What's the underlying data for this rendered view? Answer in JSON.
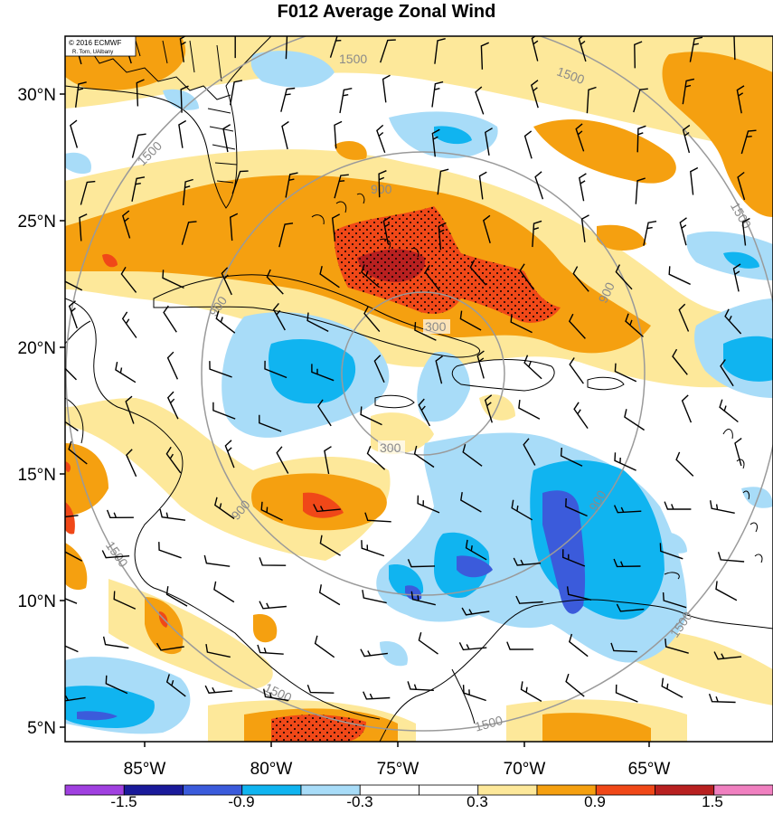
{
  "title": "F012 Average Zonal Wind",
  "credit": {
    "line1": "© 2016 ECMWF",
    "line2": "R. Torn, UAlbany"
  },
  "lat_labels": [
    "30°N",
    "25°N",
    "20°N",
    "15°N",
    "10°N",
    "5°N"
  ],
  "lon_labels": [
    "85°W",
    "80°W",
    "75°W",
    "70°W",
    "65°W"
  ],
  "ring_labels": [
    "300",
    "900",
    "1500"
  ],
  "colorbar": {
    "labels": [
      "-1.5",
      "-0.9",
      "-0.3",
      "0.3",
      "0.9",
      "1.5"
    ],
    "colors": [
      "#a040e0",
      "#1a1a9a",
      "#3b5bdb",
      "#10b4f0",
      "#a8dcf8",
      "#ffffff",
      "#ffffff",
      "#fde89a",
      "#f5a010",
      "#f04818",
      "#b82020",
      "#f080c0"
    ]
  },
  "colors": {
    "light_blue": "#a8dcf8",
    "mid_blue": "#10b4f0",
    "dark_blue": "#3b5bdb",
    "light_orange": "#fde89a",
    "orange": "#f5a010",
    "red_orange": "#f04818",
    "dark_red": "#b82020",
    "ring": "#9a9a9a"
  }
}
